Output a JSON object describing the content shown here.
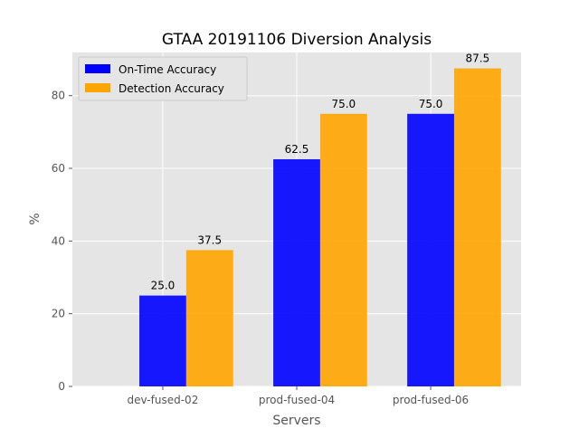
{
  "chart_data": {
    "type": "bar",
    "title": "GTAA 20191106 Diversion Analysis",
    "xlabel": "Servers",
    "ylabel": "%",
    "categories": [
      "dev-fused-02",
      "prod-fused-04",
      "prod-fused-06"
    ],
    "series": [
      {
        "name": "On-Time Accuracy",
        "color": "#0000ff",
        "values": [
          25.0,
          62.5,
          75.0
        ],
        "labels": [
          "25.0",
          "62.5",
          "75.0"
        ]
      },
      {
        "name": "Detection Accuracy",
        "color": "#ffa500",
        "values": [
          37.5,
          75.0,
          87.5
        ],
        "labels": [
          "37.5",
          "75.0",
          "87.5"
        ]
      }
    ],
    "ylim": [
      0,
      91.875
    ],
    "yticks": [
      0,
      20,
      40,
      60,
      80
    ],
    "ytick_labels": [
      "0",
      "20",
      "40",
      "60",
      "80"
    ],
    "grid": true,
    "legend_position": "top-left",
    "background_color": "#e5e5e5",
    "grid_color": "#ffffff"
  }
}
